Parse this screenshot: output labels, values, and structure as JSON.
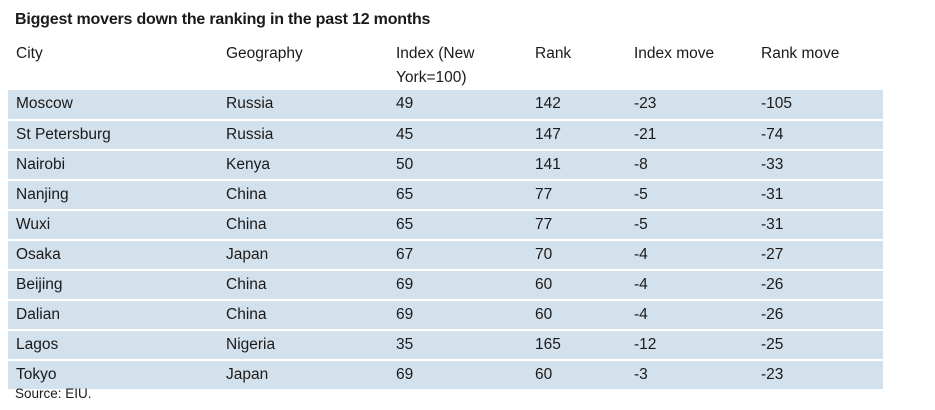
{
  "title": "Biggest movers down the ranking in the past 12 months",
  "table": {
    "headers": [
      "City",
      "Geography",
      "Index (New York=100)",
      "Rank",
      "Index move",
      "Rank move"
    ],
    "rows": [
      [
        "Moscow",
        "Russia",
        "49",
        "142",
        "-23",
        "-105"
      ],
      [
        "St Petersburg",
        "Russia",
        "45",
        "147",
        "-21",
        "-74"
      ],
      [
        "Nairobi",
        "Kenya",
        "50",
        "141",
        "-8",
        "-33"
      ],
      [
        "Nanjing",
        "China",
        "65",
        "77",
        "-5",
        "-31"
      ],
      [
        "Wuxi",
        "China",
        "65",
        "77",
        "-5",
        "-31"
      ],
      [
        "Osaka",
        "Japan",
        "67",
        "70",
        "-4",
        "-27"
      ],
      [
        "Beijing",
        "China",
        "69",
        "60",
        "-4",
        "-26"
      ],
      [
        "Dalian",
        "China",
        "69",
        "60",
        "-4",
        "-26"
      ],
      [
        "Lagos",
        "Nigeria",
        "35",
        "165",
        "-12",
        "-25"
      ],
      [
        "Tokyo",
        "Japan",
        "69",
        "60",
        "-3",
        "-23"
      ]
    ]
  },
  "source": "Source: EIU.",
  "colors": {
    "row_band": "#d3e1ec",
    "text": "#1a1a1a"
  }
}
